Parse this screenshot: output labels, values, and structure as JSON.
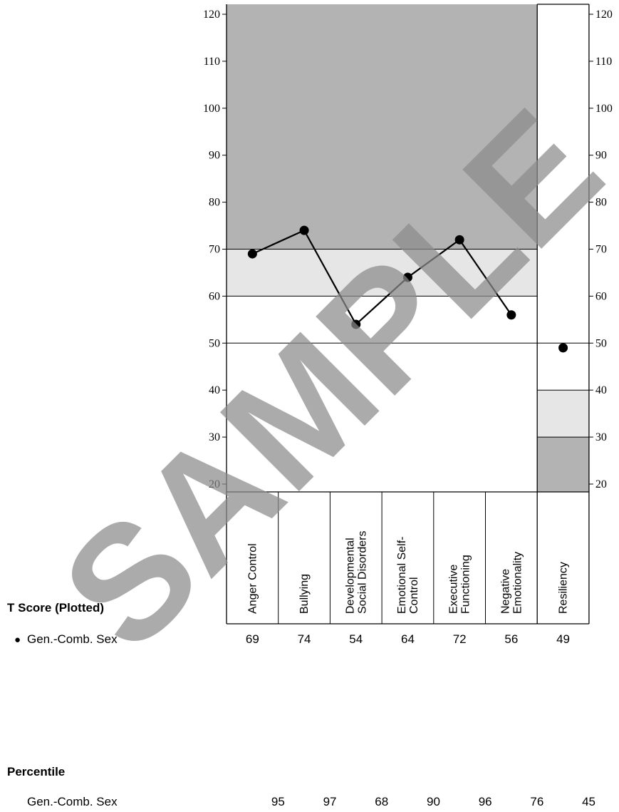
{
  "chart_data": {
    "type": "line",
    "y_axis": {
      "min": 20,
      "max": 120,
      "step": 10,
      "ticks": [
        "20",
        "30",
        "40",
        "50",
        "60",
        "70",
        "80",
        "90",
        "100",
        "110",
        "120"
      ]
    },
    "categories": [
      "Anger Control",
      "Bullying",
      "Developmental Social Disorders",
      "Emotional Self-Control",
      "Executive Functioning",
      "Negative Emotionality",
      "Resiliency"
    ],
    "category_lines": [
      [
        "Anger Control"
      ],
      [
        "Bullying"
      ],
      [
        "Developmental",
        "Social Disorders"
      ],
      [
        "Emotional Self-",
        "Control"
      ],
      [
        "Executive",
        "Functioning"
      ],
      [
        "Negative",
        "Emotionality"
      ],
      [
        "Resiliency"
      ]
    ],
    "bands": {
      "clinical_scales": {
        "dark_from": 70,
        "light_from": 60
      },
      "adaptive_scale": {
        "light_below": 40,
        "dark_below": 30
      }
    },
    "reference_line": 50,
    "series": [
      {
        "name": "Gen.-Comb. Sex",
        "t_scores": [
          69,
          74,
          54,
          64,
          72,
          56,
          49
        ],
        "percentiles": [
          95,
          97,
          68,
          90,
          96,
          76,
          45
        ]
      }
    ],
    "connected_count": 6,
    "colors": {
      "dark": "#b3b3b3",
      "light": "#e6e6e6",
      "line": "#000000",
      "watermark": "#8c8c8c"
    }
  },
  "labels": {
    "t_score_title": "T Score (Plotted)",
    "t_score_row": "Gen.-Comb. Sex",
    "t_score_marker": "●",
    "percentile_title": "Percentile",
    "percentile_row": "Gen.-Comb. Sex",
    "watermark": "SAMPLE"
  }
}
